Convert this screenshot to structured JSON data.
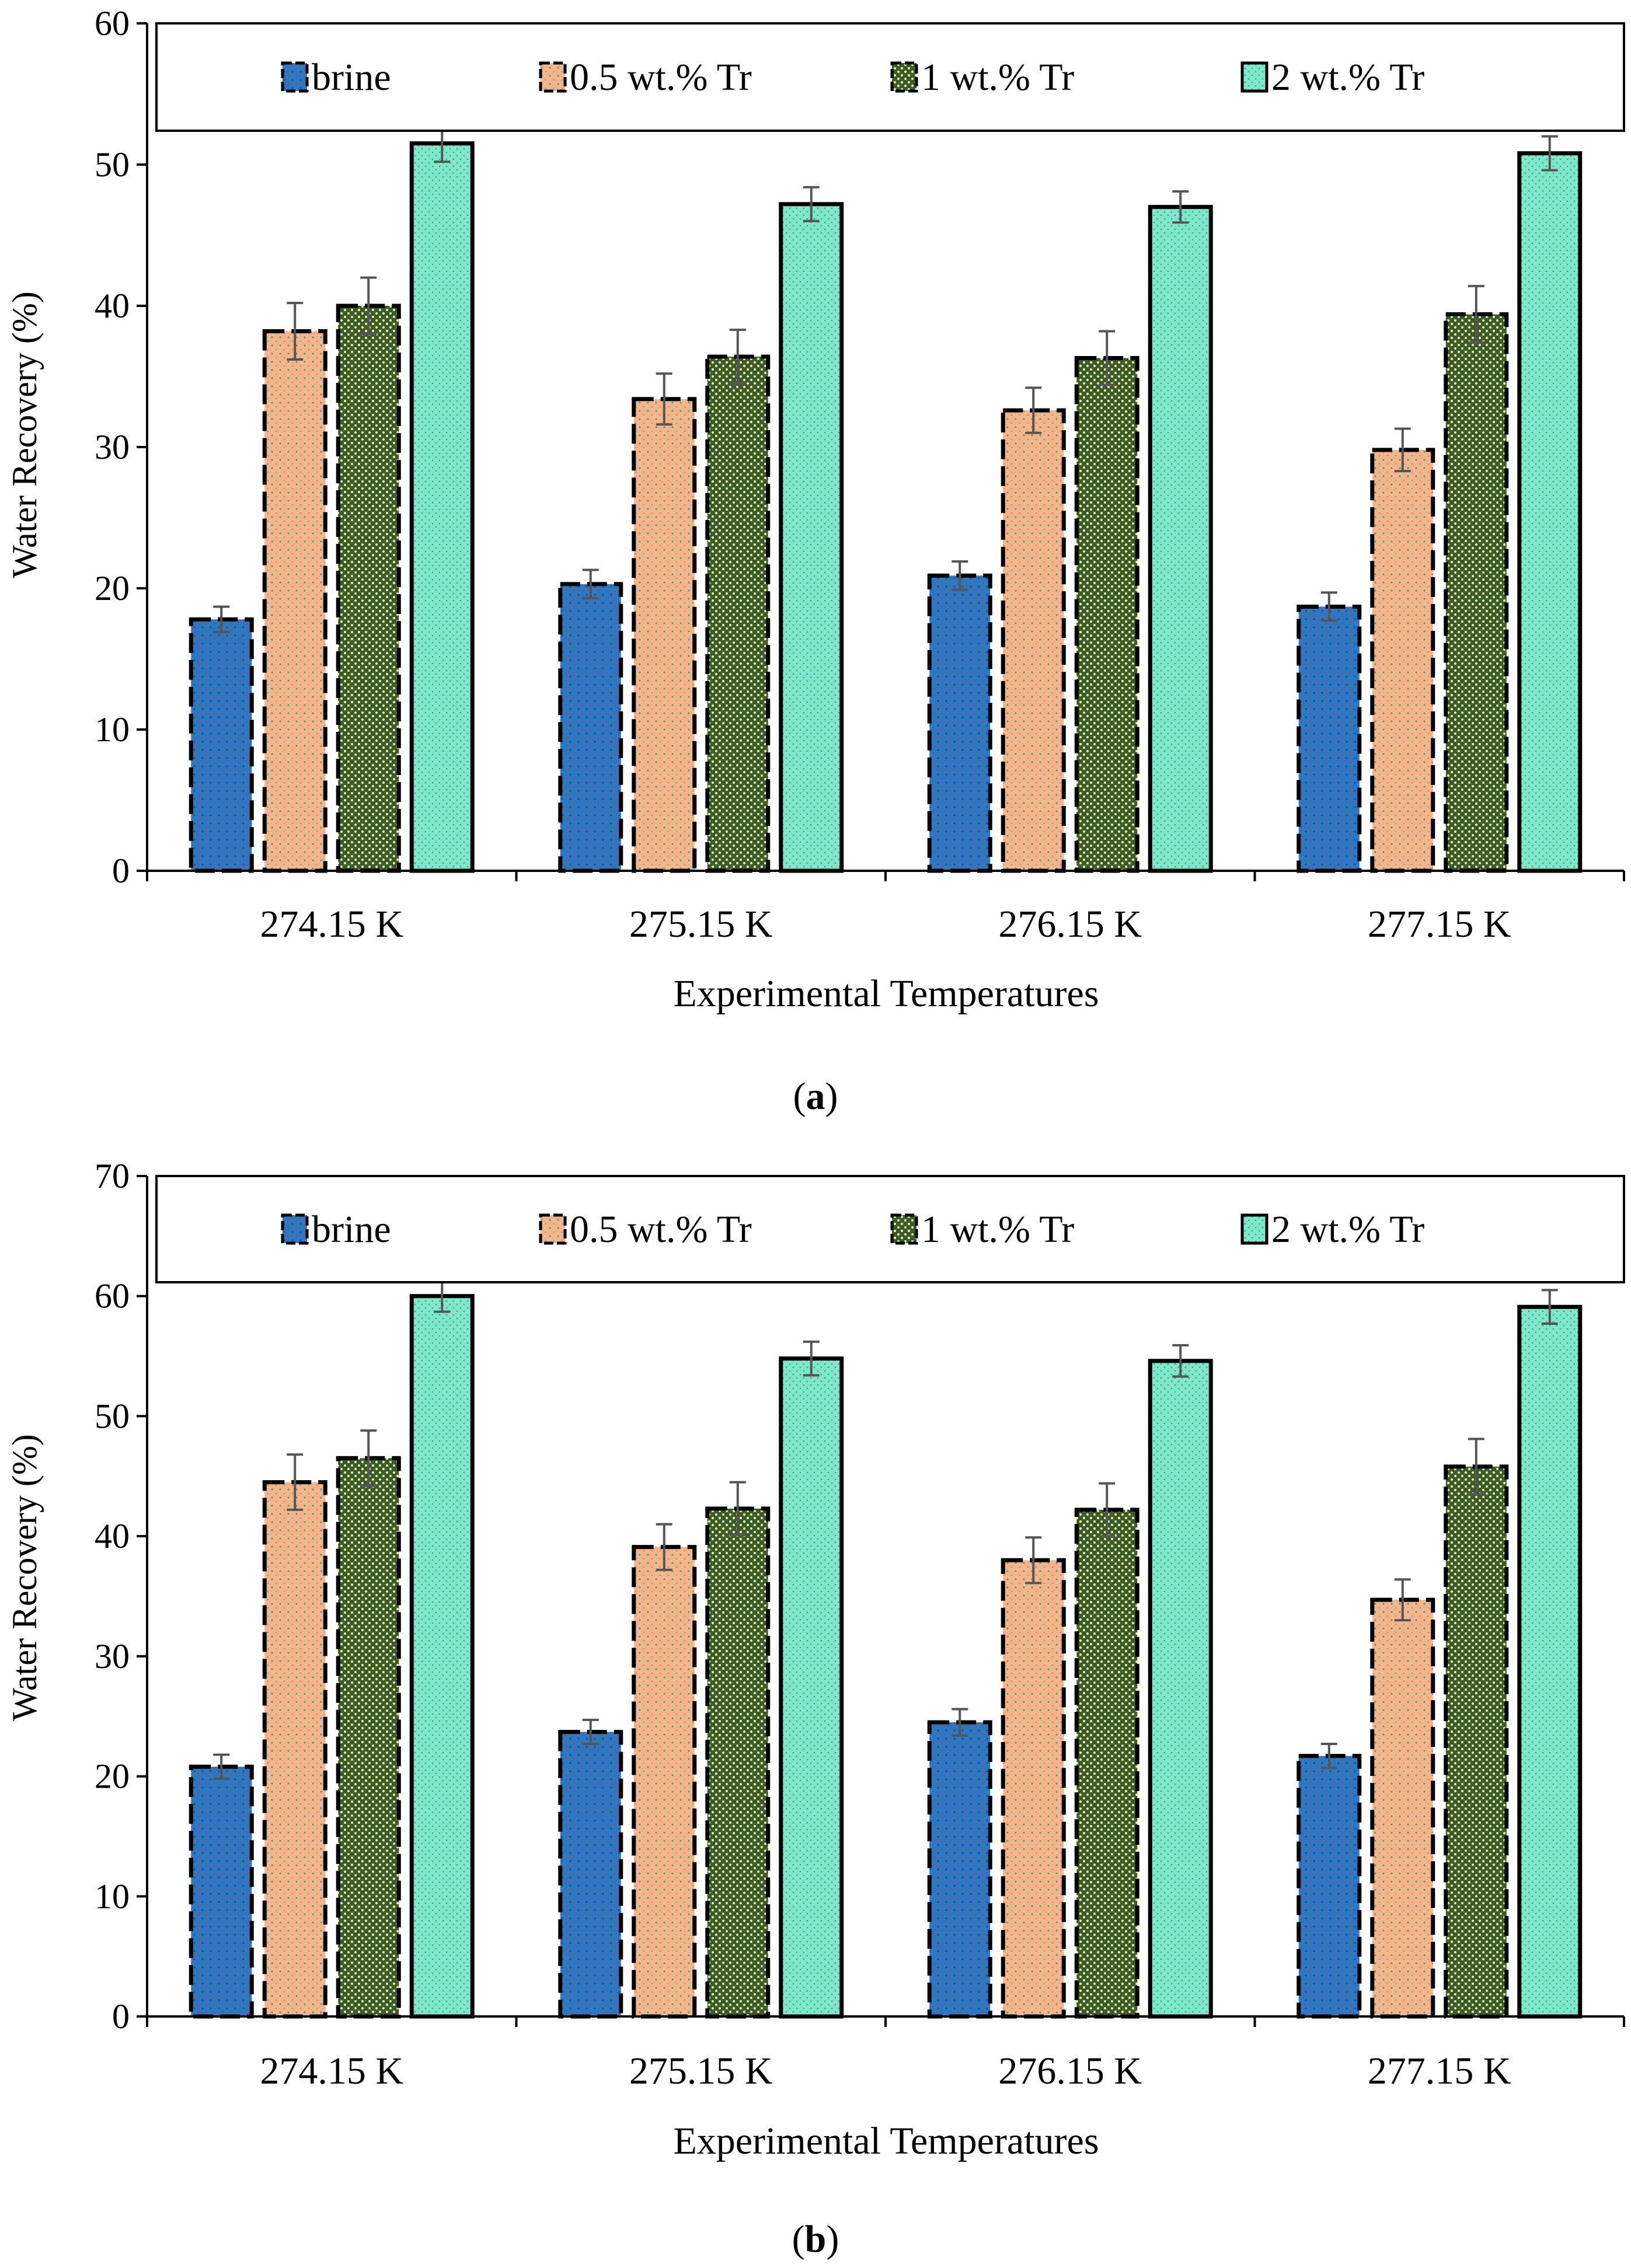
{
  "colors": {
    "brine": "#2e78c2",
    "tr05": "#f2b68c",
    "tr1": "#3d5c22",
    "tr2": "#7fe8c8",
    "axis": "#000000",
    "errorbar": "#555555"
  },
  "chart_data": [
    {
      "id": "a",
      "type": "bar",
      "panel_label": "a",
      "xlabel": "Experimental Temperatures",
      "ylabel": "Water Recovery (%)",
      "ylim": [
        0,
        60
      ],
      "yticks": [
        0,
        10,
        20,
        30,
        40,
        50,
        60
      ],
      "grid": false,
      "legend_position": "top",
      "categories": [
        "274.15 K",
        "275.15 K",
        "276.15 K",
        "277.15 K"
      ],
      "series": [
        {
          "name": "brine",
          "key": "brine",
          "values": [
            17.8,
            20.3,
            20.9,
            18.7
          ],
          "errors": [
            0.9,
            1.0,
            1.0,
            1.0
          ]
        },
        {
          "name": "0.5 wt.% Tr",
          "key": "tr05",
          "values": [
            38.2,
            33.4,
            32.6,
            29.8
          ],
          "errors": [
            2.0,
            1.8,
            1.6,
            1.5
          ]
        },
        {
          "name": "1 wt.% Tr",
          "key": "tr1",
          "values": [
            40.0,
            36.4,
            36.3,
            39.4
          ],
          "errors": [
            2.0,
            1.9,
            1.9,
            2.0
          ]
        },
        {
          "name": "2 wt.% Tr",
          "key": "tr2",
          "values": [
            51.5,
            47.2,
            47.0,
            50.8
          ],
          "errors": [
            1.3,
            1.2,
            1.1,
            1.2
          ]
        }
      ]
    },
    {
      "id": "b",
      "type": "bar",
      "panel_label": "b",
      "xlabel": "Experimental Temperatures",
      "ylabel": "Water Recovery (%)",
      "ylim": [
        0,
        70
      ],
      "yticks": [
        0,
        10,
        20,
        30,
        40,
        50,
        60,
        70
      ],
      "grid": false,
      "legend_position": "top",
      "categories": [
        "274.15 K",
        "275.15 K",
        "276.15 K",
        "277.15 K"
      ],
      "series": [
        {
          "name": "brine",
          "key": "brine",
          "values": [
            20.8,
            23.7,
            24.5,
            21.7
          ],
          "errors": [
            1.0,
            1.0,
            1.1,
            1.0
          ]
        },
        {
          "name": "0.5 wt.% Tr",
          "key": "tr05",
          "values": [
            44.5,
            39.1,
            38.0,
            34.7
          ],
          "errors": [
            2.3,
            1.9,
            1.9,
            1.7
          ]
        },
        {
          "name": "1 wt.% Tr",
          "key": "tr1",
          "values": [
            46.5,
            42.3,
            42.2,
            45.8
          ],
          "errors": [
            2.3,
            2.2,
            2.2,
            2.3
          ]
        },
        {
          "name": "2 wt.% Tr",
          "key": "tr2",
          "values": [
            60.0,
            54.8,
            54.6,
            59.1
          ],
          "errors": [
            1.3,
            1.4,
            1.3,
            1.4
          ]
        }
      ]
    }
  ]
}
